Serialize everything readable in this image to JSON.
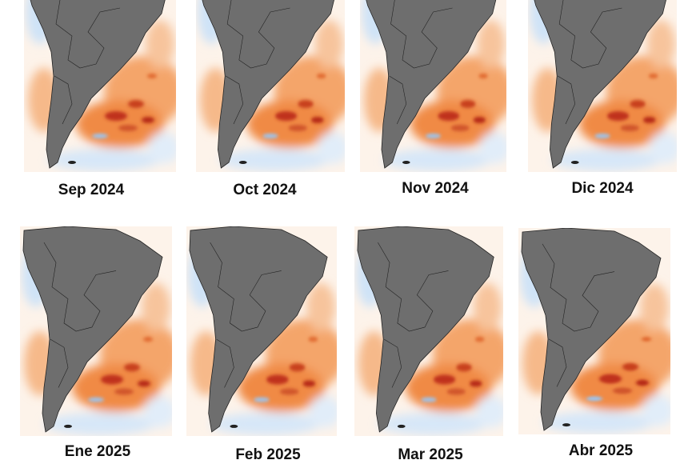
{
  "panels": [
    {
      "label": "Sep 2024"
    },
    {
      "label": "Oct 2024"
    },
    {
      "label": "Nov 2024"
    },
    {
      "label": "Dic 2024"
    },
    {
      "label": "Ene 2025"
    },
    {
      "label": "Feb 2025"
    },
    {
      "label": "Mar 2025"
    },
    {
      "label": "Abr 2025"
    }
  ]
}
